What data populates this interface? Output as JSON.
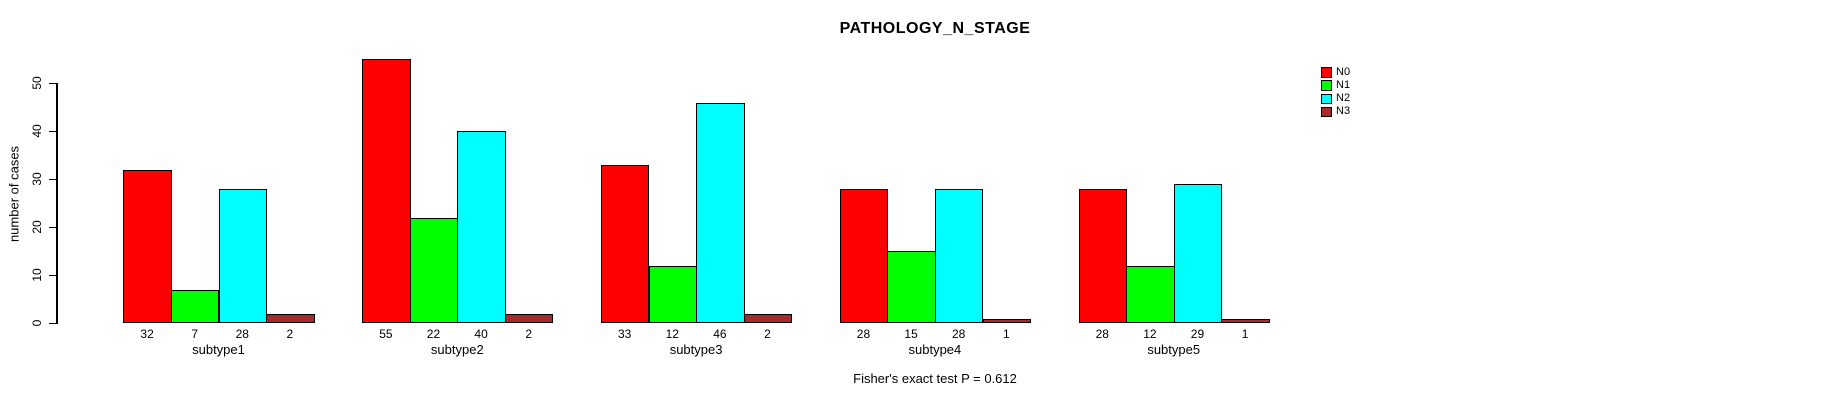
{
  "chart_data": {
    "type": "bar",
    "title": "PATHOLOGY_N_STAGE",
    "xlabel": "",
    "ylabel": "number of cases",
    "categories": [
      "subtype1",
      "subtype2",
      "subtype3",
      "subtype4",
      "subtype5"
    ],
    "series": [
      {
        "name": "N0",
        "color": "#ff0000",
        "values": [
          32,
          55,
          33,
          28,
          28
        ]
      },
      {
        "name": "N1",
        "color": "#00ff00",
        "values": [
          7,
          22,
          12,
          15,
          12
        ]
      },
      {
        "name": "N2",
        "color": "#00ffff",
        "values": [
          28,
          40,
          46,
          28,
          29
        ]
      },
      {
        "name": "N3",
        "color": "#a52a2a",
        "values": [
          2,
          2,
          2,
          1,
          1
        ]
      }
    ],
    "yticks": [
      0,
      10,
      20,
      30,
      40,
      50
    ],
    "ylim": [
      0,
      55
    ],
    "grid": false,
    "legend_position": "top-right",
    "bar_value_labels_shown": true,
    "annotation": "Fisher's exact test P = 0.612",
    "axis_color": "#000000",
    "bar_border_color": "#000000"
  }
}
